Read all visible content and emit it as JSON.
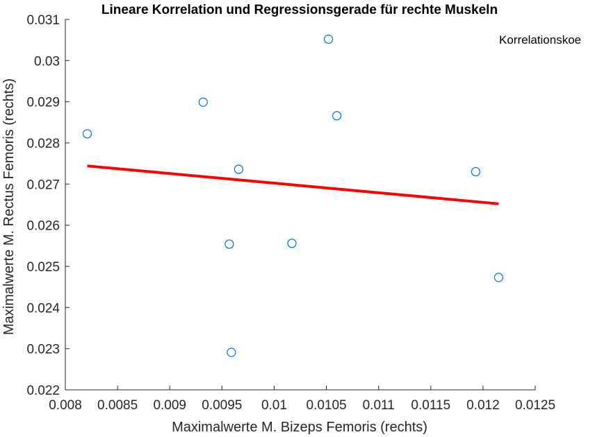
{
  "chart_data": {
    "type": "scatter",
    "title": "Lineare Korrelation und Regressionsgerade für rechte Muskeln",
    "xlabel": "Maximalwerte M. Bizeps Femoris (rechts)",
    "ylabel": "Maximalwerte M. Rectus Femoris (rechts)",
    "xlim": [
      0.008,
      0.0125
    ],
    "ylim": [
      0.022,
      0.031
    ],
    "xticks": [
      "0.008",
      "0.0085",
      "0.009",
      "0.0095",
      "0.01",
      "0.0105",
      "0.011",
      "0.0115",
      "0.012",
      "0.0125"
    ],
    "yticks": [
      "0.022",
      "0.023",
      "0.024",
      "0.025",
      "0.026",
      "0.027",
      "0.028",
      "0.029",
      "0.03",
      "0.031"
    ],
    "grid": false,
    "annotation": "Korrelationskoe",
    "series": [
      {
        "type": "scatter",
        "marker": "circle-open",
        "color": "#0072BD",
        "points": [
          [
            0.00821,
            0.02822
          ],
          [
            0.00932,
            0.02899
          ],
          [
            0.00957,
            0.02554
          ],
          [
            0.00959,
            0.02291
          ],
          [
            0.00966,
            0.02736
          ],
          [
            0.01017,
            0.02556
          ],
          [
            0.01052,
            0.03052
          ],
          [
            0.0106,
            0.02866
          ],
          [
            0.01193,
            0.0273
          ],
          [
            0.01215,
            0.02473
          ]
        ]
      },
      {
        "type": "line",
        "color": "#FF0000",
        "points": [
          [
            0.00821,
            0.02744
          ],
          [
            0.01215,
            0.02652
          ]
        ]
      }
    ]
  }
}
